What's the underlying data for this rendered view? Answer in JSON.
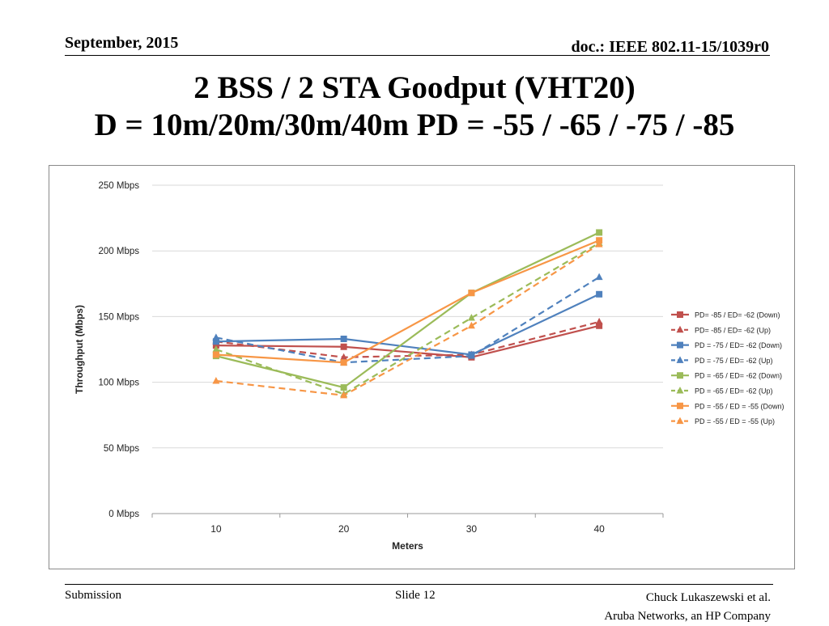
{
  "header": {
    "date": "September, 2015",
    "doc": "doc.: IEEE 802.11-15/1039r0"
  },
  "title": {
    "line1": "2 BSS / 2 STA Goodput (VHT20)",
    "line2": "D = 10m/20m/30m/40m  PD = -55 / -65 / -75 / -85"
  },
  "footer": {
    "left": "Submission",
    "center": "Slide 12",
    "right1": "Chuck Lukaszewski et al.",
    "right2": "Aruba Networks, an HP Company"
  },
  "chart_data": {
    "type": "line",
    "title": "",
    "xlabel": "Meters",
    "ylabel": "Throughput (Mbps)",
    "x": [
      10,
      20,
      30,
      40
    ],
    "x_tick_labels": [
      "10",
      "20",
      "30",
      "40"
    ],
    "ylim": [
      0,
      250
    ],
    "y_ticks": [
      0,
      50,
      100,
      150,
      200,
      250
    ],
    "y_tick_labels": [
      "0 Mbps",
      "50 Mbps",
      "100 Mbps",
      "150 Mbps",
      "200 Mbps",
      "250 Mbps"
    ],
    "grid": "horizontal",
    "legend": "right",
    "series": [
      {
        "name": "PD= -85 / ED= -62 (Down)",
        "values": [
          128,
          127,
          119,
          143
        ],
        "color": "#C0504D",
        "dash": false,
        "marker": "square"
      },
      {
        "name": "PD= -85 / ED= -62 (Up)",
        "values": [
          131,
          119,
          121,
          146
        ],
        "color": "#C0504D",
        "dash": true,
        "marker": "triangle"
      },
      {
        "name": "PD = -75 / ED= -62 (Down)",
        "values": [
          131,
          133,
          121,
          167
        ],
        "color": "#4F81BD",
        "dash": false,
        "marker": "square"
      },
      {
        "name": "PD = -75 / ED= -62 (Up)",
        "values": [
          134,
          115,
          120,
          180
        ],
        "color": "#4F81BD",
        "dash": true,
        "marker": "triangle"
      },
      {
        "name": "PD = -65 / ED= -62 (Down)",
        "values": [
          120,
          96,
          168,
          214
        ],
        "color": "#9BBB59",
        "dash": false,
        "marker": "square"
      },
      {
        "name": "PD = -65 / ED= -62 (Up)",
        "values": [
          125,
          91,
          149,
          206
        ],
        "color": "#9BBB59",
        "dash": true,
        "marker": "triangle"
      },
      {
        "name": "PD = -55 / ED = -55 (Down)",
        "values": [
          121,
          115,
          168,
          208
        ],
        "color": "#F79646",
        "dash": false,
        "marker": "square"
      },
      {
        "name": "PD = -55 / ED = -55 (Up)",
        "values": [
          101,
          90,
          143,
          205
        ],
        "color": "#F79646",
        "dash": true,
        "marker": "triangle"
      }
    ]
  }
}
